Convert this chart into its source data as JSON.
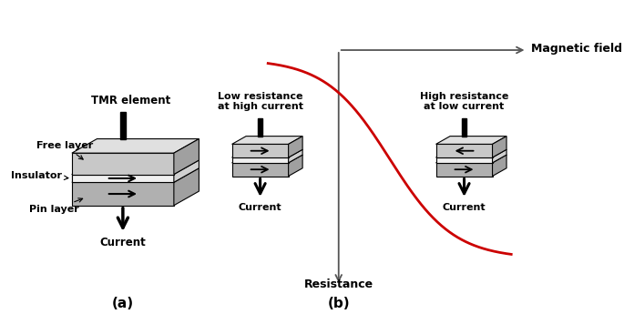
{
  "bg_color": "#ffffff",
  "label_a": "(a)",
  "label_b": "(b)",
  "tmr_label": "TMR element",
  "free_label": "Free layer",
  "ins_label": "Insulator",
  "pin_label": "Pin layer",
  "current_label": "Current",
  "resistance_label": "Resistance",
  "magfield_label": "Magnetic field",
  "low_res_label": "Low resistance\nat high current",
  "high_res_label": "High resistance\nat low current",
  "curve_color": "#cc0000",
  "box_fc_free": "#c8c8c8",
  "box_fc_ins": "#f0f0f0",
  "box_fc_pin": "#b0b0b0",
  "box_fc_top": "#e0e0e0",
  "box_fc_side": "#a0a0a0"
}
